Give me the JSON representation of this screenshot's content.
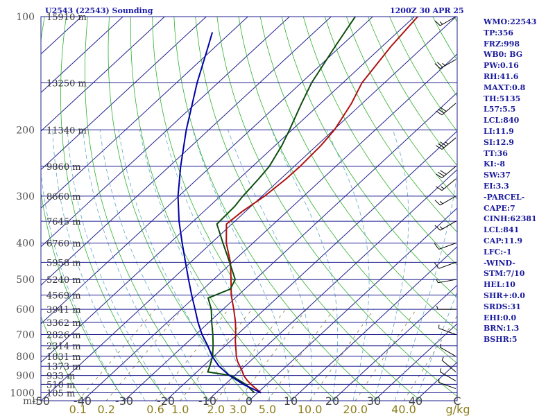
{
  "header": {
    "title": "U2543 (22543) Sounding",
    "datetime": "1200Z 30 APR 25"
  },
  "stats": [
    "WMO:22543",
    "TP:356",
    "FRZ:998",
    "WB0: BG",
    "PW:0.16",
    "RH:41.6",
    "MAXT:0.8",
    "TH:5135",
    "L57:5.5",
    "LCL:840",
    "LI:11.9",
    "SI:12.9",
    "TT:36",
    "KI:-8",
    "SW:37",
    "EI:3.3",
    "-PARCEL-",
    "CAPE:7",
    "CINH:62381",
    "LCL:841",
    "CAP:11.9",
    "LFC:-1",
    "-WIND-",
    "STM:7/10",
    "HEL:10",
    "SHR+:0.0",
    "SRDS:31",
    "EHI:0.0",
    "BRN:1.3",
    "BSHR:5"
  ],
  "colors": {
    "isobar": "#1f1f8f",
    "isotherm": "#1f1f8f",
    "dry_adiabat": "#2db02d",
    "moist_adiabat": "#5fa8c8",
    "mixing_ratio": "#8a7a3a",
    "temperature": "#b01010",
    "dewpoint": "#0d4d0d",
    "parcel": "#0000a8",
    "axis_text": "#8b7d1a"
  },
  "chart_data": {
    "type": "skew-t",
    "pressure_unit": "mb",
    "pressure_ticks": [
      100,
      200,
      300,
      400,
      500,
      600,
      700,
      800,
      900,
      1000
    ],
    "pressure_range": [
      100,
      1050
    ],
    "temperature_range": [
      -50,
      50
    ],
    "temperature_tick_labels": [
      "-50",
      "-40",
      "-30",
      "-20",
      "-10",
      "0",
      "10",
      "20",
      "30",
      "40"
    ],
    "mixing_ratio_ticks": [
      {
        "label": "0.1",
        "value": 0.1
      },
      {
        "label": "0.2",
        "value": 0.2
      },
      {
        "label": "0.6",
        "value": 0.6
      },
      {
        "label": "1.0",
        "value": 1.0
      },
      {
        "label": "2.0",
        "value": 2.0
      },
      {
        "label": "3.0",
        "value": 3.0
      },
      {
        "label": "5.0",
        "value": 5.0
      },
      {
        "label": "10.0",
        "value": 10.0
      },
      {
        "label": "20.0",
        "value": 20.0
      },
      {
        "label": "40.0",
        "value": 40.0
      }
    ],
    "mixing_ratio_unit": "g/kg",
    "height_labels": [
      {
        "p": 100,
        "label": "15910 m"
      },
      {
        "p": 150,
        "label": "13250 m"
      },
      {
        "p": 200,
        "label": "11340 m"
      },
      {
        "p": 250,
        "label": "9860 m"
      },
      {
        "p": 300,
        "label": "8660 m"
      },
      {
        "p": 350,
        "label": "7645 m"
      },
      {
        "p": 400,
        "label": "6760 m"
      },
      {
        "p": 450,
        "label": "5958 m"
      },
      {
        "p": 500,
        "label": "5240 m"
      },
      {
        "p": 550,
        "label": "4569 m"
      },
      {
        "p": 600,
        "label": "3941 m"
      },
      {
        "p": 650,
        "label": "3362 m"
      },
      {
        "p": 700,
        "label": "2826 m"
      },
      {
        "p": 750,
        "label": "2314 m"
      },
      {
        "p": 800,
        "label": "1831 m"
      },
      {
        "p": 850,
        "label": "1373 m"
      },
      {
        "p": 900,
        "label": "933 m"
      },
      {
        "p": 950,
        "label": "510 m"
      },
      {
        "p": 1000,
        "label": "105 m"
      }
    ],
    "series": [
      {
        "key": "temperature",
        "points": [
          {
            "p": 1000,
            "t": 0.8
          },
          {
            "p": 975,
            "t": -1.5
          },
          {
            "p": 950,
            "t": -3.8
          },
          {
            "p": 925,
            "t": -5.9
          },
          {
            "p": 900,
            "t": -7.8
          },
          {
            "p": 875,
            "t": -9.4
          },
          {
            "p": 850,
            "t": -11.2
          },
          {
            "p": 825,
            "t": -13.0
          },
          {
            "p": 800,
            "t": -14.6
          },
          {
            "p": 775,
            "t": -16.0
          },
          {
            "p": 750,
            "t": -17.5
          },
          {
            "p": 725,
            "t": -19.0
          },
          {
            "p": 700,
            "t": -20.4
          },
          {
            "p": 650,
            "t": -23.6
          },
          {
            "p": 600,
            "t": -27.4
          },
          {
            "p": 550,
            "t": -31.7
          },
          {
            "p": 500,
            "t": -35.8
          },
          {
            "p": 450,
            "t": -40.4
          },
          {
            "p": 400,
            "t": -46.4
          },
          {
            "p": 356,
            "t": -51.3
          },
          {
            "p": 330,
            "t": -50.8
          },
          {
            "p": 300,
            "t": -49.4
          },
          {
            "p": 270,
            "t": -48.7
          },
          {
            "p": 250,
            "t": -48.6
          },
          {
            "p": 220,
            "t": -49.0
          },
          {
            "p": 200,
            "t": -49.8
          },
          {
            "p": 170,
            "t": -52.6
          },
          {
            "p": 150,
            "t": -55.4
          },
          {
            "p": 120,
            "t": -57.9
          },
          {
            "p": 100,
            "t": -59.2
          }
        ]
      },
      {
        "key": "dewpoint",
        "points": [
          {
            "p": 1000,
            "t": -0.8
          },
          {
            "p": 950,
            "t": -5.0
          },
          {
            "p": 900,
            "t": -10.8
          },
          {
            "p": 880,
            "t": -17.4
          },
          {
            "p": 850,
            "t": -18.4
          },
          {
            "p": 800,
            "t": -20.3
          },
          {
            "p": 750,
            "t": -22.9
          },
          {
            "p": 700,
            "t": -25.9
          },
          {
            "p": 650,
            "t": -29.3
          },
          {
            "p": 600,
            "t": -32.8
          },
          {
            "p": 560,
            "t": -36.5
          },
          {
            "p": 530,
            "t": -33.5
          },
          {
            "p": 500,
            "t": -34.8
          },
          {
            "p": 450,
            "t": -40.6
          },
          {
            "p": 400,
            "t": -47.2
          },
          {
            "p": 356,
            "t": -53.6
          },
          {
            "p": 320,
            "t": -53.9
          },
          {
            "p": 300,
            "t": -54.6
          },
          {
            "p": 270,
            "t": -55.3
          },
          {
            "p": 250,
            "t": -56.0
          },
          {
            "p": 220,
            "t": -58.4
          },
          {
            "p": 200,
            "t": -60.6
          },
          {
            "p": 170,
            "t": -64.6
          },
          {
            "p": 150,
            "t": -67.5
          },
          {
            "p": 120,
            "t": -71.3
          },
          {
            "p": 100,
            "t": -74.2
          }
        ]
      },
      {
        "key": "parcel",
        "points": [
          {
            "p": 1000,
            "t": 0.8
          },
          {
            "p": 950,
            "t": -5.6
          },
          {
            "p": 900,
            "t": -11.2
          },
          {
            "p": 850,
            "t": -16.2
          },
          {
            "p": 800,
            "t": -20.4
          },
          {
            "p": 750,
            "t": -24.2
          },
          {
            "p": 700,
            "t": -28.5
          },
          {
            "p": 650,
            "t": -32.6
          },
          {
            "p": 600,
            "t": -36.7
          },
          {
            "p": 550,
            "t": -41.2
          },
          {
            "p": 500,
            "t": -46.0
          },
          {
            "p": 450,
            "t": -51.2
          },
          {
            "p": 400,
            "t": -57.0
          },
          {
            "p": 350,
            "t": -63.4
          },
          {
            "p": 300,
            "t": -70.2
          },
          {
            "p": 250,
            "t": -77.3
          },
          {
            "p": 200,
            "t": -85.4
          },
          {
            "p": 150,
            "t": -95.0
          },
          {
            "p": 120,
            "t": -101.8
          },
          {
            "p": 110,
            "t": -104.5
          }
        ]
      }
    ],
    "winds": [
      {
        "p": 975,
        "dir": 290,
        "kt": 5
      },
      {
        "p": 930,
        "dir": 300,
        "kt": 5
      },
      {
        "p": 880,
        "dir": 310,
        "kt": 5
      },
      {
        "p": 800,
        "dir": 300,
        "kt": 5
      },
      {
        "p": 700,
        "dir": 290,
        "kt": 5
      },
      {
        "p": 600,
        "dir": 270,
        "kt": 5
      },
      {
        "p": 500,
        "dir": 260,
        "kt": 5
      },
      {
        "p": 450,
        "dir": 250,
        "kt": 10
      },
      {
        "p": 400,
        "dir": 250,
        "kt": 10
      },
      {
        "p": 350,
        "dir": 240,
        "kt": 15
      },
      {
        "p": 300,
        "dir": 240,
        "kt": 15
      },
      {
        "p": 270,
        "dir": 230,
        "kt": 15
      },
      {
        "p": 250,
        "dir": 230,
        "kt": 30
      },
      {
        "p": 210,
        "dir": 230,
        "kt": 35
      },
      {
        "p": 170,
        "dir": 230,
        "kt": 30
      },
      {
        "p": 130,
        "dir": 240,
        "kt": 25
      },
      {
        "p": 100,
        "dir": 240,
        "kt": 15
      }
    ]
  }
}
